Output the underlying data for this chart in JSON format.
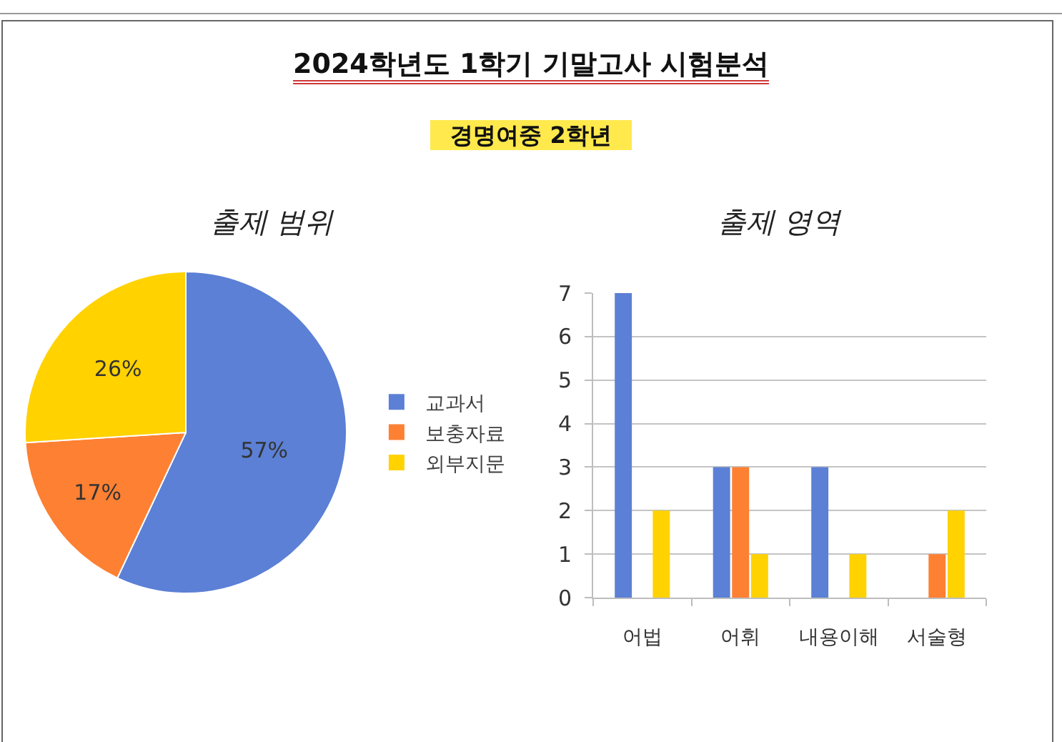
{
  "chart_data": [
    {
      "type": "other",
      "title": "2024학년도 1학기 기말고사 시험분석",
      "subtitle": "경명여중 2학년"
    },
    {
      "type": "pie",
      "title": "출제 범위",
      "categories": [
        "교과서",
        "보충자료",
        "외부지문"
      ],
      "values": [
        57,
        17,
        26
      ],
      "colors": [
        "#5b80d5",
        "#fe8033",
        "#ffd200"
      ],
      "value_labels": [
        "57%",
        "17%",
        "26%"
      ],
      "legend": "right"
    },
    {
      "type": "bar",
      "title": "출제 영역",
      "categories": [
        "어법",
        "어휘",
        "내용이해",
        "서술형"
      ],
      "series": [
        {
          "color": "#5b80d5",
          "values": [
            7,
            3,
            3,
            null
          ]
        },
        {
          "color": "#fe8033",
          "values": [
            null,
            3,
            null,
            1
          ]
        },
        {
          "color": "#ffd200",
          "values": [
            2,
            1,
            1,
            2
          ]
        }
      ],
      "ylim": [
        0,
        7
      ],
      "yticks": [
        0,
        1,
        2,
        3,
        4,
        5,
        6,
        7
      ],
      "grid": "y"
    }
  ]
}
